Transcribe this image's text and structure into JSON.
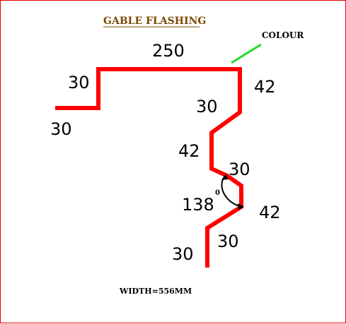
{
  "diagram": {
    "title": "GABLE FLASHING",
    "colour_label": "COLOUR",
    "width_label": "WIDTH=556MM",
    "degree_symbol": "0",
    "dimensions": {
      "top_width": "250",
      "left_rise": "30",
      "left_lip": "30",
      "right_drop": "42",
      "diag_1": "30",
      "vertical_1": "42",
      "step_1": "30",
      "angle": "138",
      "vertical_2": "42",
      "step_2": "30",
      "bottom_drop": "30"
    },
    "colors": {
      "profile": "#ff0000",
      "colour_marker": "#22dd22",
      "title": "#7a4a00",
      "border": "#e00000"
    }
  }
}
